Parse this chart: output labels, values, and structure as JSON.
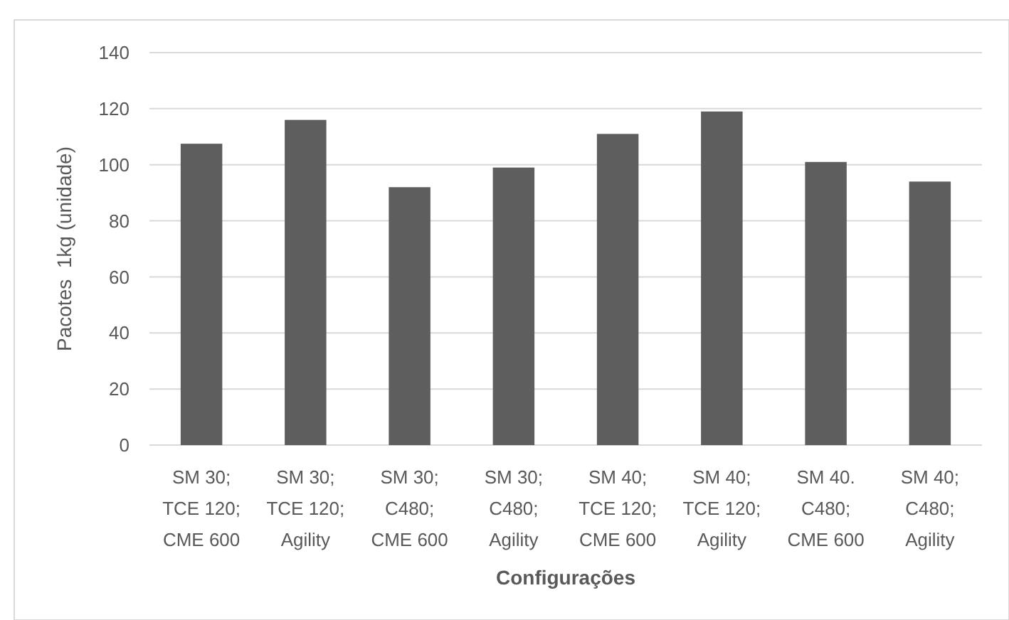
{
  "chart_data": {
    "type": "bar",
    "xlabel": "Configurações",
    "ylabel": "Pacotes  1kg (unidade)",
    "categories": [
      "SM 30; TCE 120; CME 600",
      "SM 30; TCE 120; Agility",
      "SM 30; C480; CME 600",
      "SM 30; C480; Agility",
      "SM 40; TCE 120; CME 600",
      "SM 40; TCE 120; Agility",
      "SM 40. C480; CME 600",
      "SM 40; C480; Agility"
    ],
    "values": [
      107.5,
      116,
      92,
      99,
      111,
      119,
      101,
      94
    ],
    "color": "#5e5e5e",
    "ylim": [
      0,
      140
    ],
    "yticks": [
      0,
      20,
      40,
      60,
      80,
      100,
      120,
      140
    ],
    "grid": "y"
  }
}
